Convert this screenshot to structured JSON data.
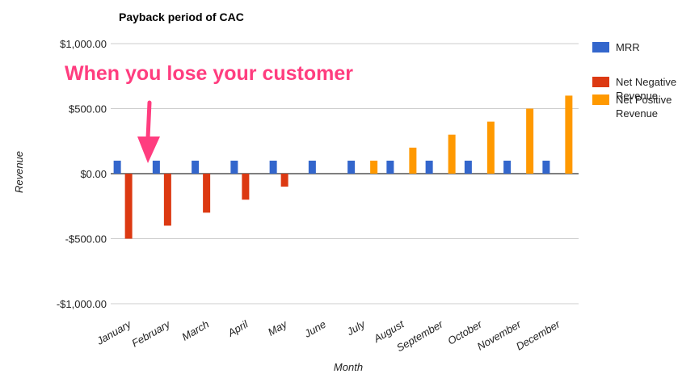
{
  "chart_data": {
    "type": "bar",
    "title": "Payback period of CAC",
    "xlabel": "Month",
    "ylabel": "Revenue",
    "ylim": [
      -1000,
      1000
    ],
    "y_ticks": [
      1000,
      500,
      0,
      -500,
      -1000
    ],
    "y_tick_labels": [
      "$1,000.00",
      "$500.00",
      "$0.00",
      "-$500.00",
      "-$1,000.00"
    ],
    "categories": [
      "January",
      "February",
      "March",
      "April",
      "May",
      "June",
      "July",
      "August",
      "September",
      "October",
      "November",
      "December"
    ],
    "series": [
      {
        "name": "MRR",
        "legend_lines": [
          "MRR"
        ],
        "color": "#3366cc",
        "values": [
          100,
          100,
          100,
          100,
          100,
          100,
          100,
          100,
          100,
          100,
          100,
          100
        ]
      },
      {
        "name": "Net Negative Revenue",
        "legend_lines": [
          "Net Negative",
          "Revenue"
        ],
        "color": "#dc3912",
        "values": [
          -500,
          -400,
          -300,
          -200,
          -100,
          0,
          0,
          0,
          0,
          0,
          0,
          0
        ]
      },
      {
        "name": "Net Positive Revenue",
        "legend_lines": [
          "Net Positive",
          "Revenue"
        ],
        "color": "#ff9900",
        "values": [
          0,
          0,
          0,
          0,
          0,
          0,
          100,
          200,
          300,
          400,
          500,
          600
        ]
      }
    ],
    "grid": true,
    "legend_position": "right",
    "annotation": {
      "text": "When you lose your customer",
      "color": "#ff3d7f",
      "points_to": "January"
    }
  }
}
